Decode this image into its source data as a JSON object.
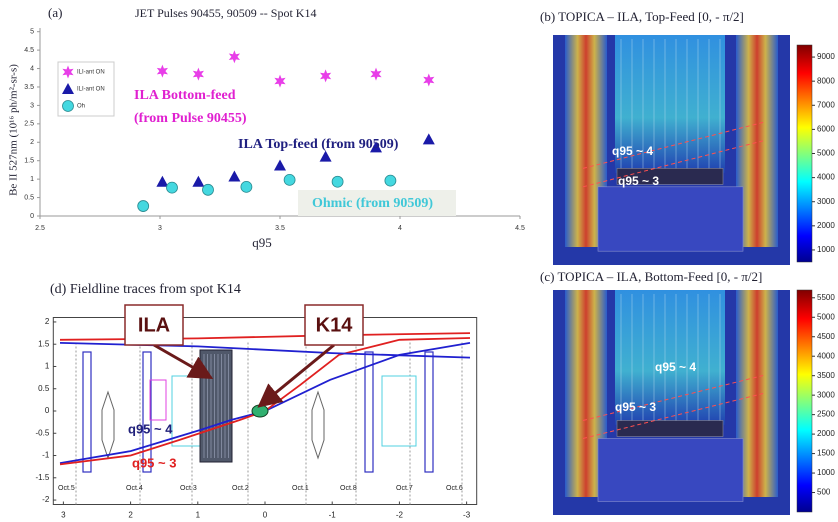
{
  "chart_data": [
    {
      "type": "scatter",
      "title": "(a)",
      "subtitle": "JET Pulses 90455, 90509  --  Spot K14",
      "xlabel": "q95",
      "ylabel": "Be II 527nm (10¹⁶ ph/m²-sr-s)",
      "xlim": [
        2.5,
        4.5
      ],
      "xticks": [
        2.5,
        3,
        3.5,
        4,
        4.5
      ],
      "ylim": [
        0,
        5.1
      ],
      "yticks": [
        0,
        0.5,
        1,
        1.5,
        2,
        2.5,
        3,
        3.5,
        4,
        4.5,
        5
      ],
      "series": [
        {
          "name": "ILI-ant ON",
          "color": "#e83ee8",
          "marker": "star",
          "x": [
            3.01,
            3.16,
            3.31,
            3.5,
            3.69,
            3.9,
            4.12
          ],
          "values": [
            3.93,
            3.85,
            4.32,
            3.66,
            3.8,
            3.85,
            3.69
          ]
        },
        {
          "name": "ILI-ant ON",
          "color": "#1a1aa8",
          "marker": "triangle",
          "x": [
            3.01,
            3.16,
            3.31,
            3.5,
            3.69,
            3.9,
            4.12
          ],
          "values": [
            0.93,
            0.93,
            1.07,
            1.37,
            1.61,
            1.86,
            2.08
          ]
        },
        {
          "name": "Oh",
          "color": "#44d8e0",
          "marker": "circle",
          "x": [
            2.93,
            3.05,
            3.2,
            3.36,
            3.54,
            3.74,
            3.96
          ],
          "values": [
            0.27,
            0.77,
            0.71,
            0.79,
            0.98,
            0.93,
            0.96
          ]
        }
      ],
      "annotations": [
        "ILA Bottom-feed",
        "(from Pulse 90455)",
        "ILA Top-feed (from 90509)",
        "Ohmic (from 90509)"
      ]
    },
    {
      "type": "heatmap",
      "title": "(b)  TOPICA – ILA, Top-Feed  [0, - π/2]",
      "colorbar_lim": [
        500,
        9500
      ],
      "colorbar_ticks": [
        1000,
        2000,
        3000,
        4000,
        5000,
        6000,
        7000,
        8000,
        9000
      ],
      "annotations": [
        "q95 ~ 4",
        "q95 ~ 3"
      ]
    },
    {
      "type": "heatmap",
      "title": "(c)  TOPICA – ILA, Bottom-Feed  [0, - π/2]",
      "colorbar_lim": [
        0,
        5700
      ],
      "colorbar_ticks": [
        500,
        1000,
        1500,
        2000,
        2500,
        3000,
        3500,
        4000,
        4500,
        5000,
        5500
      ],
      "annotations": [
        "q95 ~ 4",
        "q95 ~ 3"
      ]
    },
    {
      "type": "line",
      "title": "(d)  Fieldline traces from spot K14",
      "xlim": [
        3.15,
        -3.15
      ],
      "xticks": [
        3,
        2,
        1,
        0,
        -1,
        -2,
        -3
      ],
      "ylim": [
        -2.1,
        2.1
      ],
      "yticks": [
        -2,
        -1.5,
        -1,
        -0.5,
        0,
        0.5,
        1,
        1.5,
        2
      ],
      "sectors": [
        "Oct.5",
        "Oct.4",
        "Oct.3",
        "Oct.2",
        "Oct.1",
        "Oct.8",
        "Oct.7",
        "Oct.6"
      ],
      "series": [
        {
          "color": "#2020d0",
          "x": [
            3.05,
            2.0,
            0.97,
            0.5,
            0,
            -0.97,
            -2.0,
            -3.05
          ],
          "values": [
            -1.17,
            -0.9,
            -0.43,
            -0.2,
            0,
            0.7,
            1.26,
            1.53
          ]
        },
        {
          "color": "#e02020",
          "x": [
            3.05,
            2.0,
            1.27,
            0.37,
            0,
            -0.52,
            -1.1,
            -2.0,
            -3.05
          ],
          "values": [
            -1.2,
            -1.0,
            -0.65,
            -0.2,
            0,
            0.58,
            1.26,
            1.6,
            1.64
          ]
        },
        {
          "color": "#e02020",
          "x": [
            3.05,
            1.0,
            -1.0,
            -3.05
          ],
          "values": [
            1.6,
            1.63,
            1.7,
            1.75
          ]
        },
        {
          "color": "#2020d0",
          "x": [
            3.05,
            1.0,
            -1.0,
            -3.05
          ],
          "values": [
            1.53,
            1.45,
            1.3,
            1.2
          ]
        }
      ],
      "annotations": [
        "ILA",
        "K14",
        "q95 ~ 4",
        "q95 ~ 3"
      ]
    }
  ]
}
